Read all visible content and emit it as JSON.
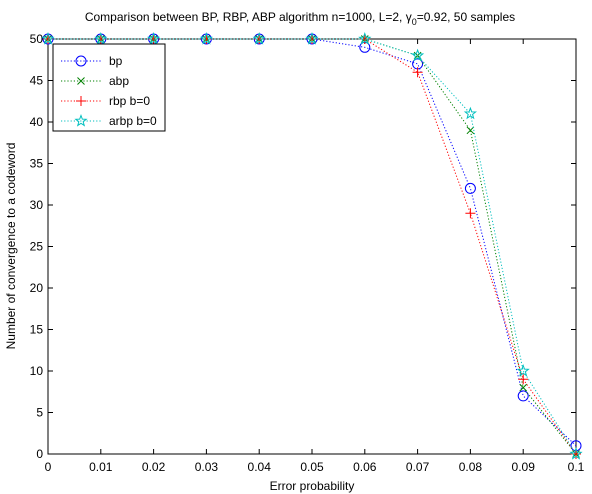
{
  "chart_data": {
    "type": "line",
    "title_parts": {
      "prefix": "Comparison between BP, RBP, ABP algorithm n=1000, L=2, ",
      "gamma": "γ",
      "gamma_sub": "0",
      "suffix": "=0.92, 50 samples"
    },
    "xlabel": "Error probability",
    "ylabel": "Number of convergence to a codeword",
    "xlim": [
      0,
      0.1
    ],
    "ylim": [
      0,
      50
    ],
    "xticks": [
      0,
      0.01,
      0.02,
      0.03,
      0.04,
      0.05,
      0.06,
      0.07,
      0.08,
      0.09,
      0.1
    ],
    "xtick_labels": [
      "0",
      "0.01",
      "0.02",
      "0.03",
      "0.04",
      "0.05",
      "0.06",
      "0.07",
      "0.08",
      "0.09",
      "0.1"
    ],
    "yticks": [
      0,
      5,
      10,
      15,
      20,
      25,
      30,
      35,
      40,
      45,
      50
    ],
    "ytick_labels": [
      "0",
      "5",
      "10",
      "15",
      "20",
      "25",
      "30",
      "35",
      "40",
      "45",
      "50"
    ],
    "grid": false,
    "legend_position": "top-left",
    "x": [
      0,
      0.01,
      0.02,
      0.03,
      0.04,
      0.05,
      0.06,
      0.07,
      0.08,
      0.09,
      0.1
    ],
    "series": [
      {
        "name": "bp",
        "marker": "circle",
        "color": "#0000ff",
        "values": [
          50,
          50,
          50,
          50,
          50,
          50,
          49,
          47,
          32,
          7,
          1
        ]
      },
      {
        "name": "abp",
        "marker": "x",
        "color": "#008000",
        "values": [
          50,
          50,
          50,
          50,
          50,
          50,
          50,
          48,
          39,
          8,
          0
        ]
      },
      {
        "name": "rbp b=0",
        "marker": "plus",
        "color": "#ff0000",
        "values": [
          50,
          50,
          50,
          50,
          50,
          50,
          50,
          46,
          29,
          9,
          0
        ]
      },
      {
        "name": "arbp b=0",
        "marker": "star",
        "color": "#00bfbf",
        "values": [
          50,
          50,
          50,
          50,
          50,
          50,
          50,
          48,
          41,
          10,
          0
        ]
      }
    ]
  }
}
